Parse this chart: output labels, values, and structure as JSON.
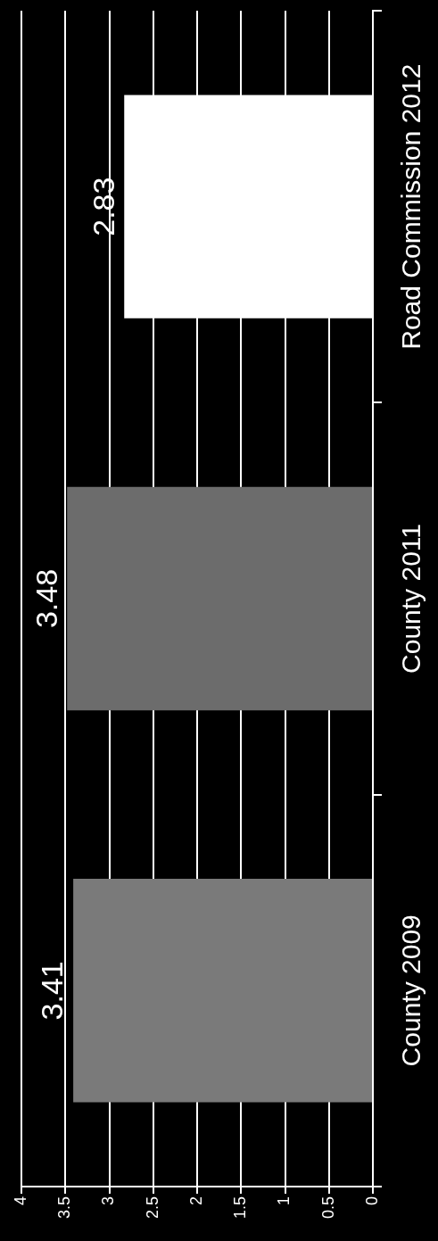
{
  "chart_data": {
    "type": "bar",
    "orientation": "horizontal",
    "categories": [
      "Road Commission 2012",
      "County 2011",
      "County 2009"
    ],
    "values": [
      2.83,
      3.48,
      3.41
    ],
    "colors": [
      "#ffffff",
      "#6c6c6c",
      "#7a7a7a"
    ],
    "xlim": [
      4,
      0
    ],
    "xticks": [
      4,
      3.5,
      3,
      2.5,
      2,
      1.5,
      1,
      0.5,
      0
    ],
    "grid": "x",
    "data_labels": true
  }
}
